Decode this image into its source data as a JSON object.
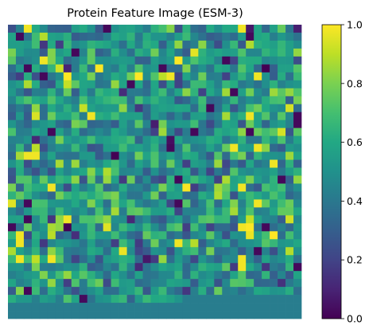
{
  "chart_data": {
    "type": "heatmap",
    "title": "Protein Feature Image (ESM-3)",
    "rows": 37,
    "cols": 37,
    "filled_cells": 1280,
    "pad_value": 0.42,
    "value_range": [
      0.0,
      1.0
    ],
    "center_value": 0.52,
    "spread": 0.17,
    "random_seed": 3,
    "colormap": "viridis",
    "colorbar": {
      "ticks": [
        0.0,
        0.2,
        0.4,
        0.6,
        0.8,
        1.0
      ],
      "tick_labels": [
        "0.0",
        "0.2",
        "0.4",
        "0.6",
        "0.8",
        "1.0"
      ]
    },
    "axes_visible": false
  }
}
